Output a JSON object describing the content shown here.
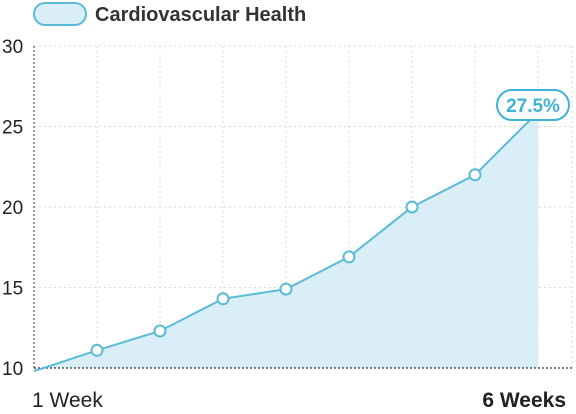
{
  "legend": {
    "label": "Cardiovascular Health"
  },
  "colors": {
    "line": "#5bbbd6",
    "fill": "#d9eef6",
    "callout": "#3fb3d5",
    "grid": "#d9d9d9",
    "axis": "#333333"
  },
  "chart_data": {
    "type": "area",
    "legend": "Cardiovascular Health",
    "title": "",
    "xlabel": "",
    "ylabel": "",
    "x_start_label": "1 Week",
    "x_end_label": "6 Weeks",
    "ylim": [
      10,
      30
    ],
    "yticks": [
      10,
      15,
      20,
      25,
      30
    ],
    "grid": "vertical dashed, horizontal at y ticks",
    "series": [
      {
        "name": "Cardiovascular Health",
        "values": [
          9.8,
          11.1,
          12.3,
          14.3,
          14.9,
          16.9,
          20.0,
          22.0,
          25.9
        ]
      }
    ],
    "callout": "27.5%"
  }
}
